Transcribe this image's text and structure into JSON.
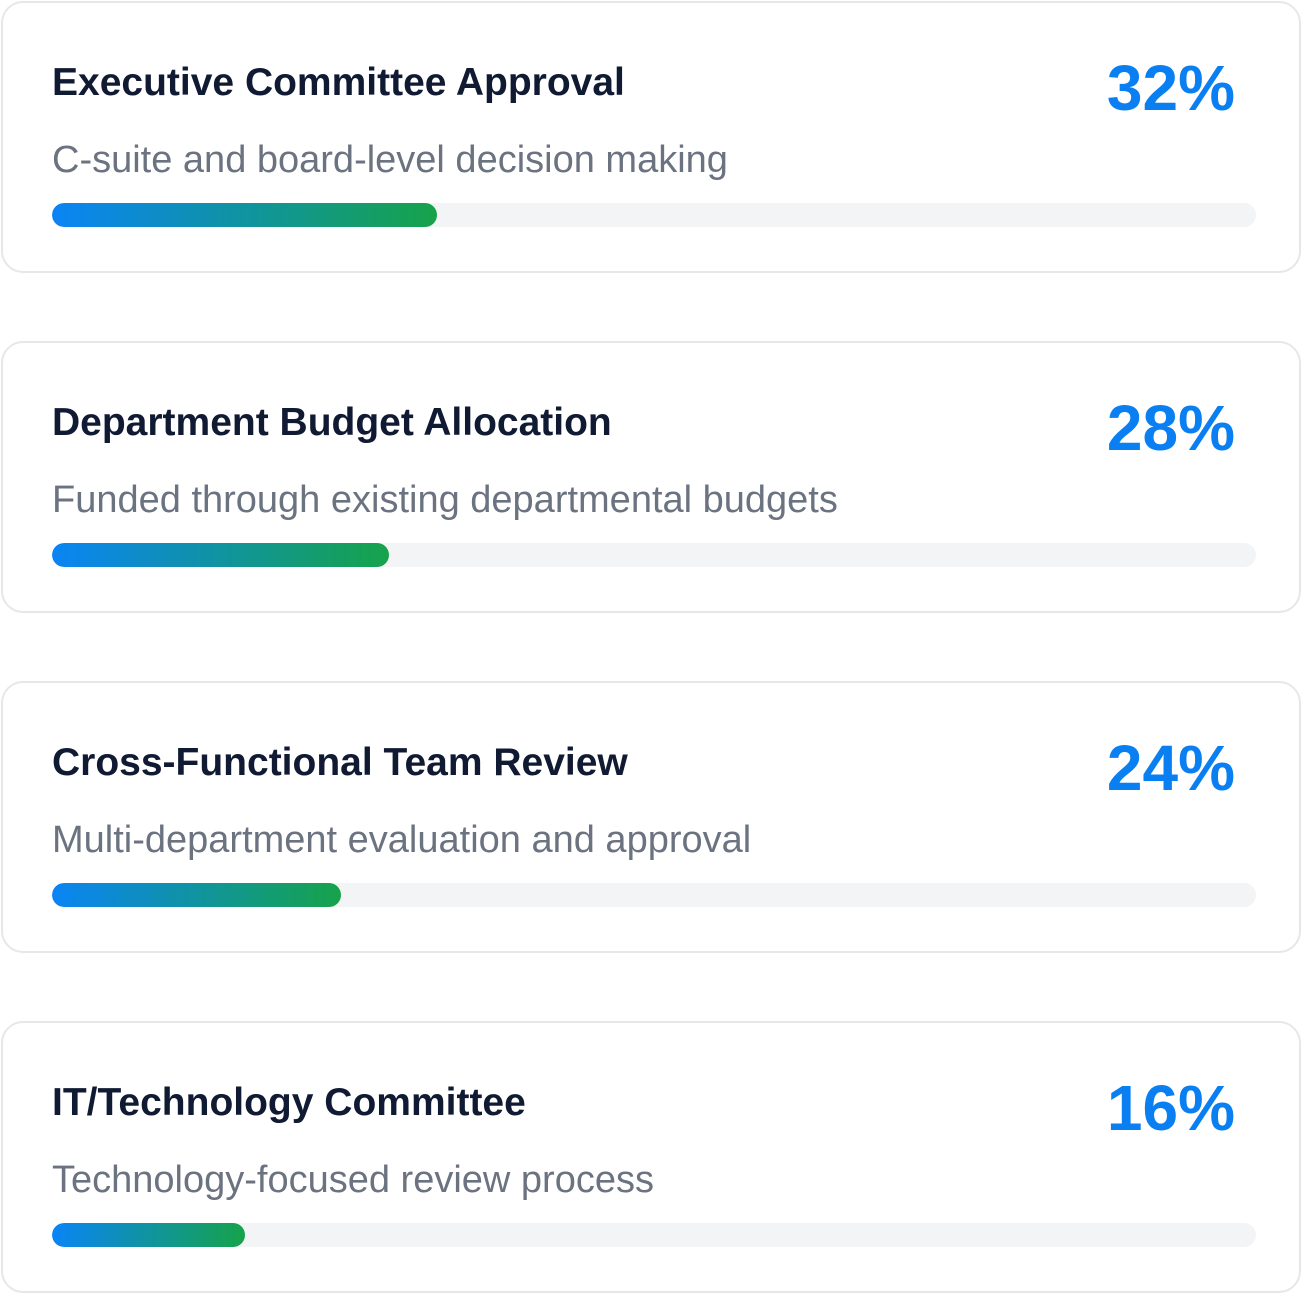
{
  "cards": [
    {
      "title": "Executive Committee Approval",
      "subtitle": "C-suite and board-level decision making",
      "percent_label": "32%",
      "progress": 32
    },
    {
      "title": "Department Budget Allocation",
      "subtitle": "Funded through existing departmental budgets",
      "percent_label": "28%",
      "progress": 28
    },
    {
      "title": "Cross-Functional Team Review",
      "subtitle": "Multi-department evaluation and approval",
      "percent_label": "24%",
      "progress": 24
    },
    {
      "title": "IT/Technology Committee",
      "subtitle": "Technology-focused review process",
      "percent_label": "16%",
      "progress": 16
    }
  ],
  "colors": {
    "accent": "#0a7ff2",
    "gradient_start": "#0a84f5",
    "gradient_end": "#16a34a",
    "title": "#101a33",
    "subtitle": "#6b7280",
    "track": "#f3f4f6",
    "border": "#e5e7eb"
  }
}
